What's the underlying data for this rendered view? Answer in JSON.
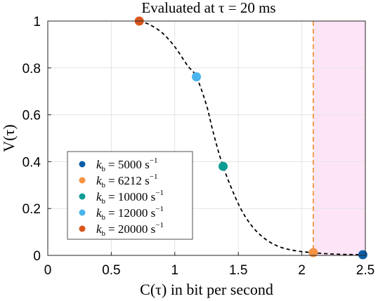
{
  "chart_data": {
    "type": "scatter",
    "title": "Evaluated at τ = 20 ms",
    "xlabel": "C(τ) in bit per second",
    "ylabel": "V(τ)",
    "xlim": [
      0,
      2.5
    ],
    "ylim": [
      0,
      1
    ],
    "x_ticks": [
      "0",
      "0.5",
      "1",
      "1.5",
      "2",
      "2.5"
    ],
    "y_ticks": [
      "0",
      "0.2",
      "0.4",
      "0.6",
      "0.8",
      "1"
    ],
    "grid": true,
    "legend_position": "lower-left",
    "curve": {
      "style": "dashed",
      "color": "#000000",
      "x": [
        0.72,
        0.8,
        0.9,
        1.0,
        1.1,
        1.17,
        1.25,
        1.3,
        1.38,
        1.5,
        1.6,
        1.7,
        1.8,
        1.9,
        2.0,
        2.08,
        2.2,
        2.35,
        2.48
      ],
      "y": [
        1.0,
        0.985,
        0.95,
        0.89,
        0.81,
        0.762,
        0.64,
        0.53,
        0.38,
        0.22,
        0.13,
        0.075,
        0.042,
        0.025,
        0.016,
        0.012,
        0.007,
        0.004,
        0.003
      ]
    },
    "vertical_line": {
      "x": 2.09,
      "style": "dashed",
      "color": "#f28e2b"
    },
    "shaded_region": {
      "x_from": 2.09,
      "x_to": 2.5,
      "color": "#fde4f7"
    },
    "series": [
      {
        "name": "k_b = 5000 s^-1",
        "legend": {
          "lhs": "k",
          "sub": "b",
          "rhs": "= 5000 s",
          "sup": "−1"
        },
        "color": "#0b5fa8",
        "x": 2.48,
        "y": 0.003
      },
      {
        "name": "k_b = 6212 s^-1",
        "legend": {
          "lhs": "k",
          "sub": "b",
          "rhs": "= 6212 s",
          "sup": "−1"
        },
        "color": "#f59342",
        "x": 2.09,
        "y": 0.012
      },
      {
        "name": "k_b = 10000 s^-1",
        "legend": {
          "lhs": "k",
          "sub": "b",
          "rhs": "= 10000 s",
          "sup": "−1"
        },
        "color": "#0e9c94",
        "x": 1.38,
        "y": 0.38
      },
      {
        "name": "k_b = 12000 s^-1",
        "legend": {
          "lhs": "k",
          "sub": "b",
          "rhs": "= 12000 s",
          "sup": "−1"
        },
        "color": "#4bb4ee",
        "x": 1.17,
        "y": 0.762
      },
      {
        "name": "k_b = 20000 s^-1",
        "legend": {
          "lhs": "k",
          "sub": "b",
          "rhs": "= 20000 s",
          "sup": "−1"
        },
        "color": "#d9551c",
        "x": 0.72,
        "y": 1.0
      }
    ]
  }
}
